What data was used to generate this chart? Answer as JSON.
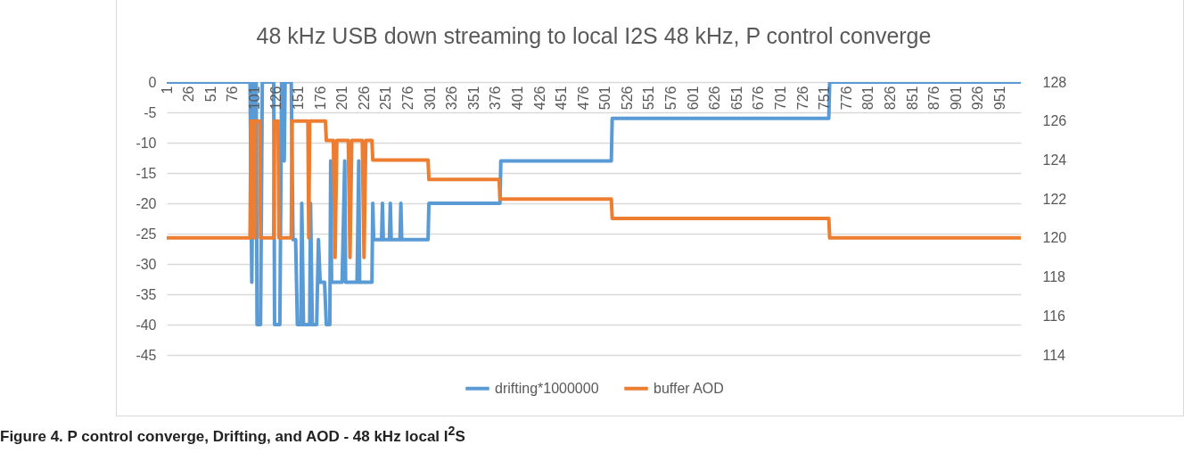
{
  "chart_data": {
    "type": "line",
    "title": "48 kHz USB down streaming to local I2S 48 kHz, P control converge",
    "annotations": [
      "Figure 4.  P control converge, Drifting, and AOD - 48 kHz local I$^{2}$S"
    ],
    "xlim": [
      1,
      975
    ],
    "xticks": [
      1,
      26,
      51,
      76,
      101,
      126,
      151,
      176,
      201,
      226,
      251,
      276,
      301,
      326,
      351,
      376,
      401,
      426,
      451,
      476,
      501,
      526,
      551,
      576,
      601,
      626,
      651,
      676,
      701,
      726,
      751,
      776,
      801,
      826,
      851,
      876,
      901,
      926,
      951
    ],
    "ylim": [
      -45,
      0
    ],
    "yticks": [
      -45,
      -40,
      -35,
      -30,
      -25,
      -20,
      -15,
      -10,
      -5,
      0
    ],
    "y2lim": [
      114,
      128
    ],
    "y2ticks": [
      114,
      116,
      118,
      120,
      122,
      124,
      126,
      128
    ],
    "grid": "y",
    "legend": "bottom",
    "series": [
      {
        "name": "drifting*1000000",
        "color": "#5b9bd5",
        "x": [
          1,
          96,
          98,
          100,
          103,
          104,
          108,
          110,
          123,
          124,
          130,
          132,
          134,
          135,
          136,
          143,
          145,
          148,
          150,
          154,
          155,
          157,
          164,
          165,
          167,
          172,
          174,
          176,
          181,
          183,
          187,
          188,
          189,
          201,
          204,
          205,
          218,
          220,
          221,
          235,
          236,
          237,
          246,
          247,
          248,
          255,
          256,
          257,
          267,
          268,
          269,
          299,
          300,
          381,
          382,
          508,
          509,
          756,
          757,
          975
        ],
        "values": [
          0,
          0,
          -33,
          0,
          0,
          -40,
          -40,
          0,
          0,
          -40,
          -40,
          0,
          0,
          -13,
          0,
          0,
          -26,
          -26,
          -40,
          -40,
          -20,
          -40,
          -40,
          -20,
          -40,
          -40,
          -26,
          -33,
          -33,
          -40,
          -40,
          -13,
          -33,
          -33,
          -13,
          -33,
          -33,
          -13,
          -33,
          -33,
          -20,
          -26,
          -26,
          -20,
          -26,
          -26,
          -20,
          -26,
          -26,
          -20,
          -26,
          -26,
          -20,
          -20,
          -13,
          -13,
          -6,
          -6,
          0,
          0
        ]
      },
      {
        "name": "buffer AOD",
        "color": "#ed7d31",
        "axis": "y2",
        "x": [
          1,
          96,
          97,
          99,
          100,
          101,
          102,
          107,
          108,
          123,
          124,
          128,
          129,
          143,
          144,
          162,
          163,
          164,
          182,
          183,
          191,
          193,
          195,
          208,
          210,
          212,
          224,
          226,
          228,
          235,
          236,
          299,
          300,
          380,
          381,
          508,
          509,
          756,
          757,
          975
        ],
        "values": [
          120,
          120,
          126,
          126,
          120,
          120,
          126,
          126,
          120,
          120,
          126,
          126,
          120,
          120,
          126,
          126,
          120,
          126,
          126,
          125,
          125,
          119,
          125,
          125,
          119,
          125,
          125,
          119,
          125,
          125,
          124,
          124,
          123,
          123,
          122,
          122,
          121,
          121,
          120,
          120
        ]
      }
    ]
  }
}
